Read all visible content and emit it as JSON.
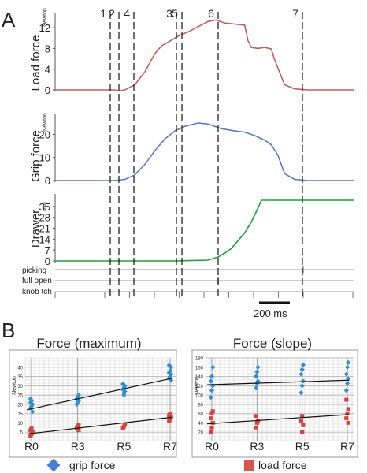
{
  "panel_a": {
    "letter": "A",
    "marker_labels": [
      "1",
      "2",
      "4",
      "3",
      "5",
      "6",
      "7"
    ],
    "scale_bar_label": "200 ms",
    "event_labels": [
      "picking",
      "full open",
      "knob tch"
    ]
  },
  "panel_b": {
    "letter": "B",
    "legend": {
      "grip": "grip force",
      "load": "load force"
    }
  },
  "colors": {
    "load": "#c0605a",
    "grip": "#5a7dbd",
    "drawer": "#1fa03a",
    "grip_dots": "#2f8fd0",
    "load_dots": "#d9413b",
    "grid": "#b8b8b8"
  },
  "chart_data": [
    {
      "type": "line",
      "ylabel": "Load force",
      "yunit": "Newton",
      "yticks": [
        0,
        4,
        8,
        12
      ],
      "ylim": [
        0,
        14
      ],
      "series": [
        {
          "name": "Load force",
          "x": [
            0,
            60,
            90,
            95,
            105,
            120,
            135,
            150,
            160,
            175,
            185,
            200,
            215,
            230,
            242,
            248,
            255,
            270,
            285,
            290,
            295,
            305,
            315,
            325,
            330,
            345,
            360,
            370,
            380,
            400,
            420,
            440,
            450
          ],
          "y": [
            0,
            0,
            0,
            -0.2,
            0,
            1,
            3.5,
            7,
            8.5,
            9.6,
            10.4,
            11.2,
            12.2,
            13.2,
            13.5,
            13.2,
            12.9,
            12.7,
            12.5,
            9.5,
            8.2,
            8.0,
            8.2,
            7.9,
            5.8,
            1.0,
            0.2,
            0.1,
            0,
            0,
            0,
            0,
            0
          ]
        }
      ]
    },
    {
      "type": "line",
      "ylabel": "Grip force",
      "yunit": "Newton",
      "yticks": [
        0,
        10,
        20
      ],
      "ylim": [
        0,
        27
      ],
      "series": [
        {
          "name": "Grip force",
          "x": [
            0,
            60,
            90,
            105,
            120,
            135,
            150,
            165,
            180,
            195,
            215,
            230,
            250,
            270,
            285,
            300,
            315,
            325,
            335,
            345,
            360,
            380,
            400,
            420,
            440,
            450
          ],
          "y": [
            0,
            0,
            0,
            0.5,
            2.5,
            7,
            13,
            18,
            21.5,
            23.5,
            25,
            24.5,
            22.5,
            21.5,
            21,
            19.5,
            17.5,
            15.5,
            11,
            3,
            0.5,
            0,
            0,
            0,
            0,
            0
          ]
        }
      ]
    },
    {
      "type": "line",
      "ylabel": "Drawer",
      "yunit": "mm",
      "yticks": [
        0,
        7,
        14,
        21,
        28,
        35
      ],
      "ylim": [
        0,
        40
      ],
      "series": [
        {
          "name": "Drawer",
          "x": [
            0,
            60,
            120,
            180,
            230,
            245,
            255,
            265,
            275,
            285,
            295,
            305,
            310,
            320,
            340,
            380,
            420,
            450
          ],
          "y": [
            0,
            0,
            0,
            0,
            0.5,
            2.5,
            5,
            8,
            13,
            18,
            25,
            34,
            39,
            39,
            39,
            39,
            39,
            39
          ]
        }
      ]
    },
    {
      "type": "scatter",
      "title": "Force (maximum)",
      "ylabel": "Newton",
      "categories": [
        "R0",
        "R3",
        "R5",
        "R7"
      ],
      "ylim": [
        0,
        45
      ],
      "yticks": [
        5,
        10,
        15,
        20,
        25,
        30,
        35,
        40
      ],
      "series": [
        {
          "name": "grip force",
          "points": [
            [
              0,
              18
            ],
            [
              0,
              19
            ],
            [
              0,
              20
            ],
            [
              0,
              21
            ],
            [
              0,
              22
            ],
            [
              0,
              16
            ],
            [
              0,
              23
            ],
            [
              1,
              21
            ],
            [
              1,
              22
            ],
            [
              1,
              23
            ],
            [
              1,
              24
            ],
            [
              1,
              25
            ],
            [
              1,
              20
            ],
            [
              2,
              26
            ],
            [
              2,
              27
            ],
            [
              2,
              28
            ],
            [
              2,
              29
            ],
            [
              2,
              30
            ],
            [
              2,
              31
            ],
            [
              2,
              25
            ],
            [
              3,
              33
            ],
            [
              3,
              34
            ],
            [
              3,
              35
            ],
            [
              3,
              36
            ],
            [
              3,
              37
            ],
            [
              3,
              38
            ],
            [
              3,
              40
            ],
            [
              3,
              41
            ]
          ],
          "fit": [
            [
              0,
              17
            ],
            [
              3,
              34
            ]
          ]
        },
        {
          "name": "load force",
          "points": [
            [
              0,
              3
            ],
            [
              0,
              4
            ],
            [
              0,
              5
            ],
            [
              0,
              6
            ],
            [
              0,
              7
            ],
            [
              1,
              6
            ],
            [
              1,
              7
            ],
            [
              1,
              8
            ],
            [
              1,
              9
            ],
            [
              2,
              7
            ],
            [
              2,
              8
            ],
            [
              2,
              9
            ],
            [
              3,
              11
            ],
            [
              3,
              12
            ],
            [
              3,
              13
            ],
            [
              3,
              14
            ],
            [
              3,
              15
            ]
          ],
          "fit": [
            [
              0,
              4
            ],
            [
              3,
              13
            ]
          ]
        }
      ]
    },
    {
      "type": "scatter",
      "title": "Force (slope)",
      "ylabel": "Newton",
      "categories": [
        "R0",
        "R3",
        "R5",
        "R7"
      ],
      "ylim": [
        0,
        180
      ],
      "yticks": [
        20,
        40,
        60,
        80,
        100,
        120,
        140,
        160,
        180
      ],
      "series": [
        {
          "name": "grip force",
          "points": [
            [
              0,
              95
            ],
            [
              0,
              110
            ],
            [
              0,
              120
            ],
            [
              0,
              130
            ],
            [
              0,
              140
            ],
            [
              0,
              160
            ],
            [
              1,
              115
            ],
            [
              1,
              125
            ],
            [
              1,
              130
            ],
            [
              1,
              140
            ],
            [
              1,
              150
            ],
            [
              1,
              160
            ],
            [
              2,
              105
            ],
            [
              2,
              120
            ],
            [
              2,
              130
            ],
            [
              2,
              145
            ],
            [
              2,
              155
            ],
            [
              2,
              165
            ],
            [
              3,
              110
            ],
            [
              3,
              125
            ],
            [
              3,
              135
            ],
            [
              3,
              145
            ],
            [
              3,
              160
            ],
            [
              3,
              170
            ]
          ],
          "fit": [
            [
              0,
              122
            ],
            [
              3,
              132
            ]
          ]
        },
        {
          "name": "load force",
          "points": [
            [
              0,
              20
            ],
            [
              0,
              30
            ],
            [
              0,
              40
            ],
            [
              0,
              50
            ],
            [
              0,
              60
            ],
            [
              0,
              65
            ],
            [
              1,
              30
            ],
            [
              1,
              40
            ],
            [
              1,
              45
            ],
            [
              1,
              55
            ],
            [
              2,
              20
            ],
            [
              2,
              35
            ],
            [
              2,
              45
            ],
            [
              2,
              55
            ],
            [
              3,
              40
            ],
            [
              3,
              50
            ],
            [
              3,
              60
            ],
            [
              3,
              70
            ],
            [
              3,
              90
            ]
          ],
          "fit": [
            [
              0,
              38
            ],
            [
              3,
              58
            ]
          ]
        }
      ]
    }
  ]
}
